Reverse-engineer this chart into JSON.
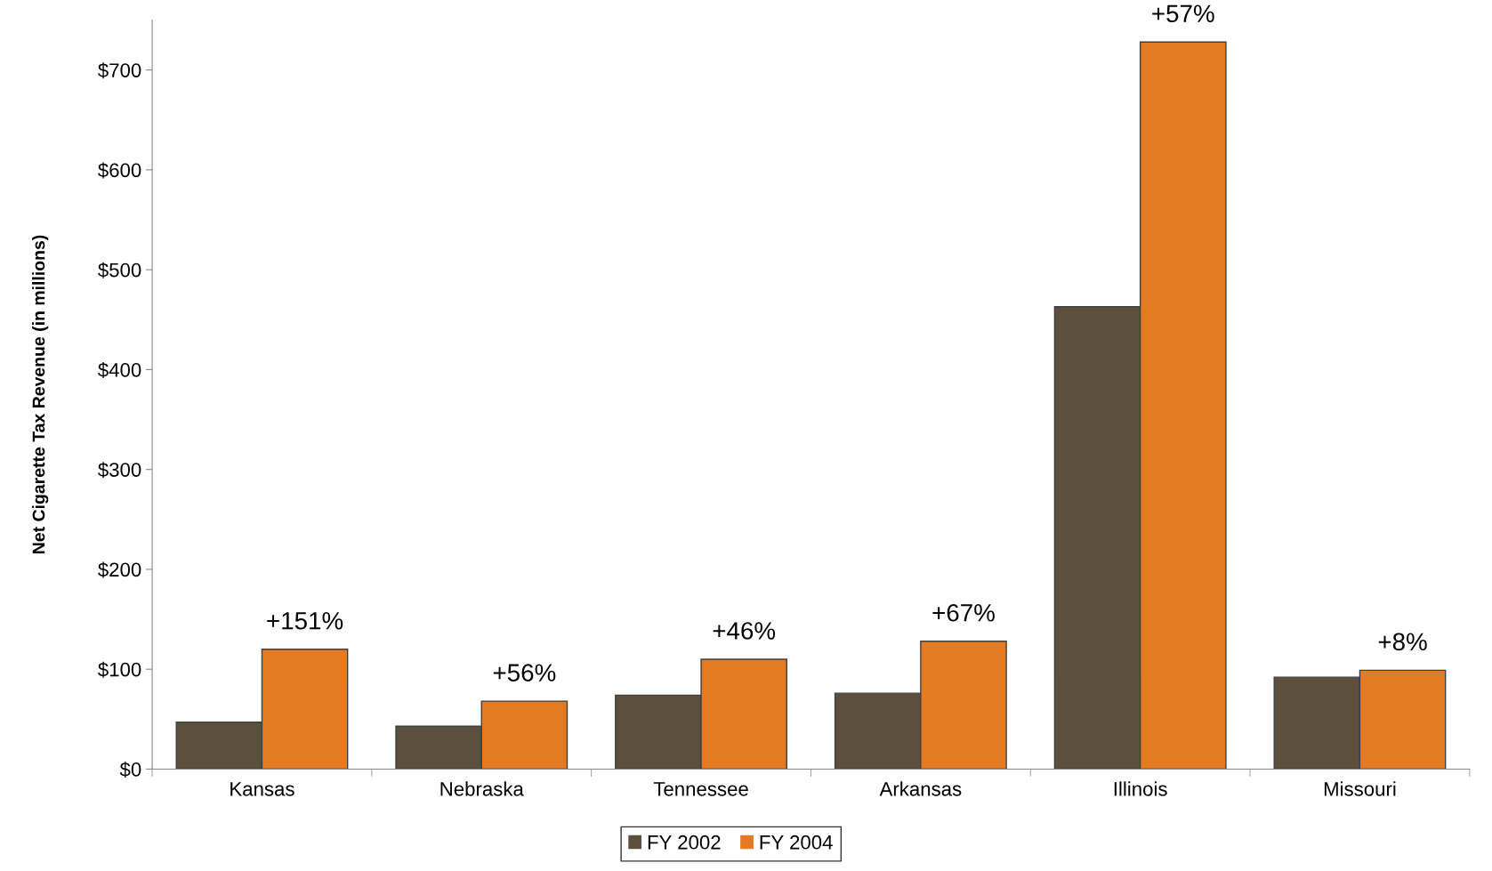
{
  "chart_data": {
    "type": "bar",
    "ylabel": "Net Cigarette Tax Revenue (in millions)",
    "categories": [
      "Kansas",
      "Nebraska",
      "Tennessee",
      "Arkansas",
      "Illinois",
      "Missouri"
    ],
    "series": [
      {
        "name": "FY 2002",
        "color": "#5c4f3c",
        "values": [
          47,
          43,
          74,
          76,
          463,
          92
        ]
      },
      {
        "name": "FY 2004",
        "color": "#e37b24",
        "values": [
          120,
          68,
          110,
          128,
          728,
          99
        ]
      }
    ],
    "ylim": [
      0,
      750
    ],
    "yticks": [
      {
        "value": 0,
        "label": "$0"
      },
      {
        "value": 100,
        "label": "$100"
      },
      {
        "value": 200,
        "label": "$200"
      },
      {
        "value": 300,
        "label": "$300"
      },
      {
        "value": 400,
        "label": "$400"
      },
      {
        "value": 500,
        "label": "$500"
      },
      {
        "value": 600,
        "label": "$600"
      },
      {
        "value": 700,
        "label": "$700"
      }
    ],
    "annotations": [
      {
        "text": "+151%",
        "x": "Kansas",
        "y": 120
      },
      {
        "text": "+56%",
        "x": "Nebraska",
        "y": 68
      },
      {
        "text": "+46%",
        "x": "Tennessee",
        "y": 110
      },
      {
        "text": "+67%",
        "x": "Arkansas",
        "y": 128
      },
      {
        "text": "+57%",
        "x": "Illinois",
        "y": 728
      },
      {
        "text": "+8%",
        "x": "Missouri",
        "y": 99
      }
    ],
    "grid": false,
    "legend": "bottom"
  }
}
